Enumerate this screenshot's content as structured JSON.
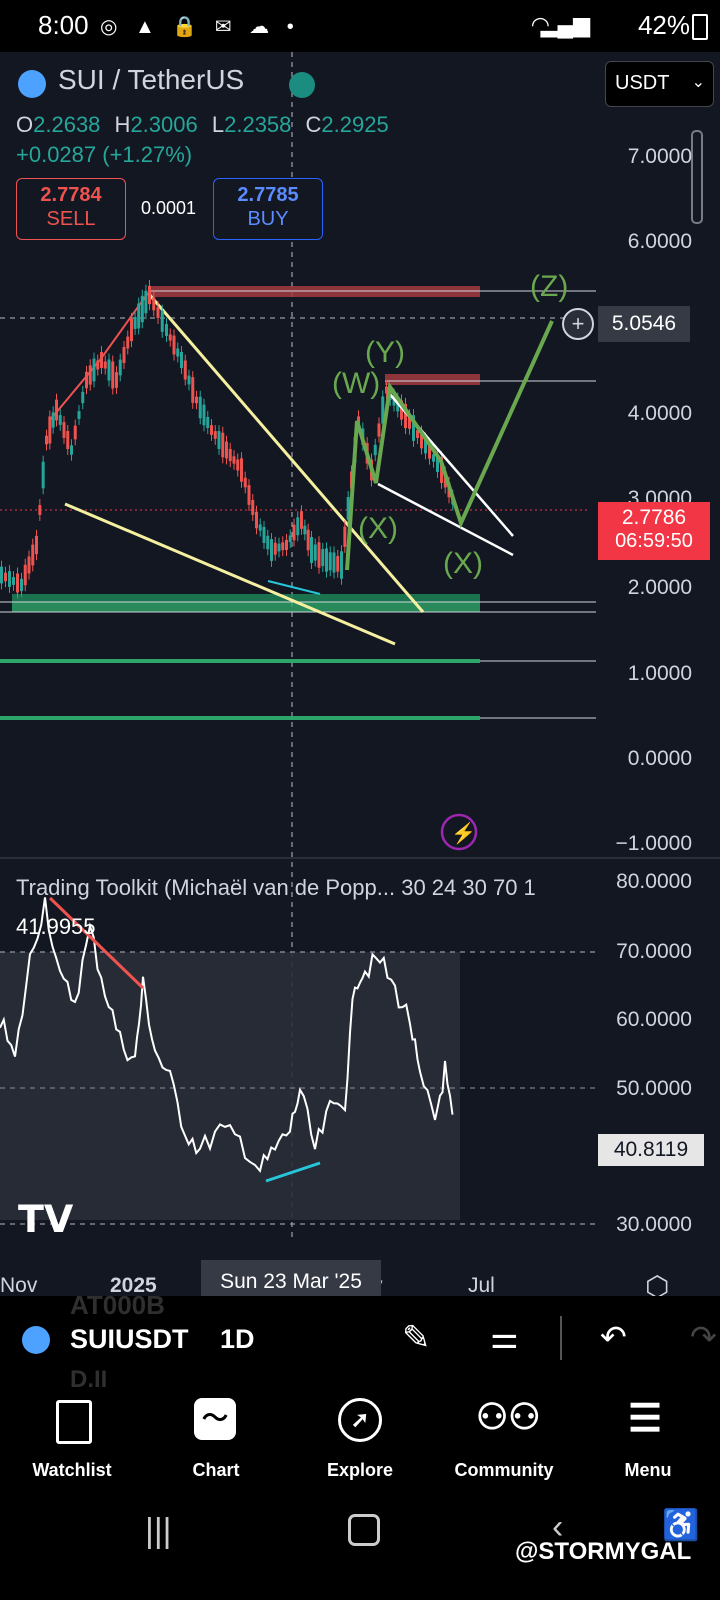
{
  "status_bar": {
    "time": "8:00",
    "battery": "42%"
  },
  "symbol": {
    "title": "SUI / TetherUS",
    "currency": "USDT"
  },
  "ohlc": {
    "o_label": "O",
    "o": "2.2638",
    "h_label": "H",
    "h": "2.3006",
    "l_label": "L",
    "l": "2.2358",
    "c_label": "C",
    "c": "2.2925",
    "change": "+0.0287 (+1.27%)"
  },
  "trade": {
    "sell_price": "2.7784",
    "sell_label": "SELL",
    "spread": "0.0001",
    "buy_price": "2.7785",
    "buy_label": "BUY"
  },
  "price_axis": {
    "ticks": [
      "7.0000",
      "6.0000",
      "4.0000",
      "3.0000",
      "2.0000",
      "1.0000",
      "0.0000",
      "−1.0000"
    ],
    "crosshair_value": "5.0546",
    "last_price": "2.7786",
    "countdown": "06:59:50"
  },
  "wave_labels": [
    "(W)",
    "(X)",
    "(Y)",
    "(X)",
    "(Z)"
  ],
  "indicator": {
    "name": "Trading Toolkit (Michaël van de Popp... 30 24 30 70 1",
    "value": "41.9955",
    "ticks": [
      "80.0000",
      "70.0000",
      "60.0000",
      "50.0000",
      "30.0000"
    ],
    "current": "40.8119"
  },
  "time_axis": {
    "labels": [
      "Nov",
      "2025",
      "y",
      "Jul"
    ],
    "crosshair": "Sun 23 Mar '25"
  },
  "toolbar": {
    "symbol": "SUIUSDT",
    "interval": "1D",
    "ghost_top": "AT000B",
    "ghost_bottom": "D.II"
  },
  "nav": [
    {
      "label": "Watchlist",
      "icon": "watchlist-icon"
    },
    {
      "label": "Chart",
      "icon": "chart-icon"
    },
    {
      "label": "Explore",
      "icon": "compass-icon"
    },
    {
      "label": "Community",
      "icon": "community-icon"
    },
    {
      "label": "Menu",
      "icon": "menu-icon"
    }
  ],
  "watermark": "@STORMYGAL",
  "colors": {
    "bg": "#131722",
    "up": "#26a69a",
    "down": "#ef5350",
    "wave": "#6aa84f",
    "last_price": "#f23645"
  }
}
